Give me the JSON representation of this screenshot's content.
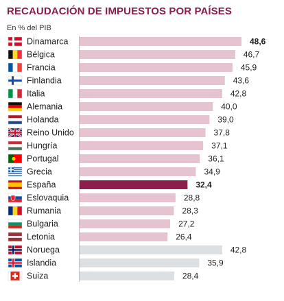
{
  "chart_data": {
    "type": "bar",
    "orientation": "horizontal",
    "title": "RECAUDACIÓN DE IMPUESTOS POR PAÍSES",
    "subtitle": "En % del PIB",
    "xlim": [
      0,
      50
    ],
    "grid": false,
    "legend": "none",
    "categories": [
      "Dinamarca",
      "Bélgica",
      "Francia",
      "Finlandia",
      "Italia",
      "Alemania",
      "Holanda",
      "Reino Unido",
      "Hungría",
      "Portugal",
      "Grecia",
      "España",
      "Eslovaquia",
      "Rumania",
      "Bulgaria",
      "Letonia",
      "Noruega",
      "Islandia",
      "Suiza"
    ],
    "values": [
      48.6,
      46.7,
      45.9,
      43.6,
      42.8,
      40.0,
      39.0,
      37.8,
      37.1,
      36.1,
      34.9,
      32.4,
      28.8,
      28.3,
      27.2,
      26.4,
      42.8,
      35.9,
      28.4
    ],
    "value_labels": [
      "48,6",
      "46,7",
      "45,9",
      "43,6",
      "42,8",
      "40,0",
      "39,0",
      "37,8",
      "37,1",
      "36,1",
      "34,9",
      "32,4",
      "28,8",
      "28,3",
      "27,2",
      "26,4",
      "42,8",
      "35,9",
      "28,4"
    ],
    "bold_labels": [
      "48,6",
      "32,4"
    ],
    "groups": [
      "eu",
      "eu",
      "eu",
      "eu",
      "eu",
      "eu",
      "eu",
      "eu",
      "eu",
      "eu",
      "eu",
      "highlight",
      "eu",
      "eu",
      "eu",
      "eu",
      "non-eu",
      "non-eu",
      "non-eu"
    ],
    "flags": [
      "dk-flag-icon",
      "be-flag-icon",
      "fr-flag-icon",
      "fi-flag-icon",
      "it-flag-icon",
      "de-flag-icon",
      "nl-flag-icon",
      "gb-flag-icon",
      "hu-flag-icon",
      "pt-flag-icon",
      "gr-flag-icon",
      "es-flag-icon",
      "sk-flag-icon",
      "ro-flag-icon",
      "bg-flag-icon",
      "lv-flag-icon",
      "no-flag-icon",
      "is-flag-icon",
      "ch-flag-icon"
    ],
    "colors": {
      "eu": "#e5c3d0",
      "highlight": "#8b1e4c",
      "non-eu": "#dde0e3",
      "title": "#8b1e4c"
    }
  }
}
